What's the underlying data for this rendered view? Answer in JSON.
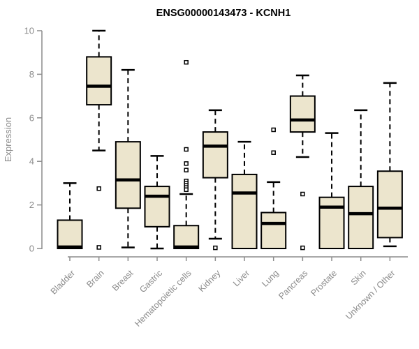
{
  "chart_data": {
    "type": "boxplot",
    "title": "ENSG00000143473 - KCNH1",
    "xlabel": "",
    "ylabel": "Expression",
    "ylim": [
      0,
      10
    ],
    "yticks": [
      0,
      2,
      4,
      6,
      8,
      10
    ],
    "grid": false,
    "legend": null,
    "categories": [
      "Bladder",
      "Brain",
      "Breast",
      "Gastric",
      "Hematopoietic cells",
      "Kidney",
      "Liver",
      "Lung",
      "Pancreas",
      "Prostate",
      "Skin",
      "Unknown / Other"
    ],
    "series": [
      {
        "name": "Bladder",
        "min": 0,
        "q1": 0,
        "median": 0.07,
        "q3": 1.3,
        "max": 3.0,
        "outliers": []
      },
      {
        "name": "Brain",
        "min": 4.5,
        "q1": 6.6,
        "median": 7.45,
        "q3": 8.8,
        "max": 10.0,
        "outliers": [
          2.75,
          0.05
        ]
      },
      {
        "name": "Breast",
        "min": 0.05,
        "q1": 1.85,
        "median": 3.15,
        "q3": 4.9,
        "max": 8.2,
        "outliers": []
      },
      {
        "name": "Gastric",
        "min": 0,
        "q1": 1.0,
        "median": 2.4,
        "q3": 2.85,
        "max": 4.25,
        "outliers": []
      },
      {
        "name": "Hematopoietic cells",
        "min": 0,
        "q1": 0,
        "median": 0.07,
        "q3": 1.05,
        "max": 2.5,
        "outliers": [
          8.55,
          4.55,
          3.9,
          3.6,
          3.1,
          3.0,
          2.9,
          2.8,
          2.7
        ]
      },
      {
        "name": "Kidney",
        "min": 0.45,
        "q1": 3.25,
        "median": 4.7,
        "q3": 5.35,
        "max": 6.35,
        "outliers": [
          0.03
        ]
      },
      {
        "name": "Liver",
        "min": 0,
        "q1": 0,
        "median": 2.55,
        "q3": 3.4,
        "max": 4.9,
        "outliers": []
      },
      {
        "name": "Lung",
        "min": 0,
        "q1": 0,
        "median": 1.15,
        "q3": 1.65,
        "max": 3.05,
        "outliers": [
          5.45,
          4.4
        ]
      },
      {
        "name": "Pancreas",
        "min": 4.2,
        "q1": 5.35,
        "median": 5.9,
        "q3": 7.0,
        "max": 7.95,
        "outliers": [
          2.5,
          0.03
        ]
      },
      {
        "name": "Prostate",
        "min": 0,
        "q1": 0,
        "median": 1.9,
        "q3": 2.35,
        "max": 5.3,
        "outliers": []
      },
      {
        "name": "Skin",
        "min": 0,
        "q1": 0,
        "median": 1.6,
        "q3": 2.85,
        "max": 6.35,
        "outliers": []
      },
      {
        "name": "Unknown / Other",
        "min": 0.1,
        "q1": 0.5,
        "median": 1.85,
        "q3": 3.55,
        "max": 7.6,
        "outliers": []
      }
    ],
    "colors": {
      "box_fill": "#ece5cd",
      "box_border": "#000000",
      "median": "#000000",
      "whisker": "#000000",
      "outlier_stroke": "#000000",
      "outlier_fill": "#ffffff",
      "axis": "#8c8c8c",
      "tick_label": "#8a8a8a",
      "title": "#000000",
      "background": "#ffffff"
    }
  }
}
